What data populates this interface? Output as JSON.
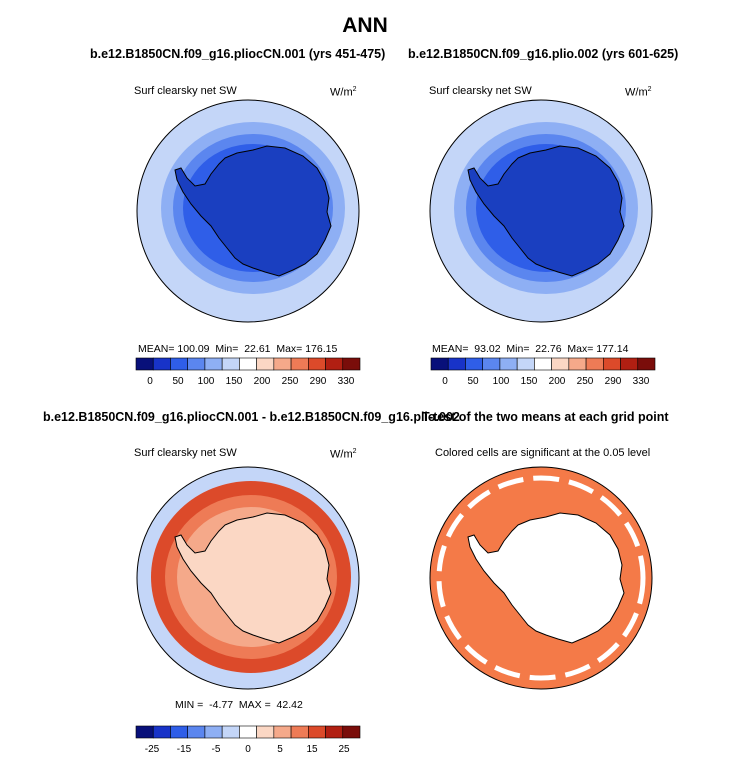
{
  "title": "ANN",
  "panels": {
    "tl": {
      "case_title": "b.e12.B1850CN.f09_g16.pliocCN.001 (yrs 451-475)",
      "variable": "Surf clearsky net SW",
      "units": "W/m",
      "units_sup": "2",
      "stats": "MEAN= 100.09  Min=  22.61  Max= 176.15"
    },
    "tr": {
      "case_title": "b.e12.B1850CN.f09_g16.plio.002 (yrs 601-625)",
      "variable": "Surf clearsky net SW",
      "units": "W/m",
      "units_sup": "2",
      "stats": "MEAN=  93.02  Min=  22.76  Max= 177.14"
    },
    "bl": {
      "case_title": "b.e12.B1850CN.f09_g16.pliocCN.001 - b.e12.B1850CN.f09_g16.plio.002",
      "variable": "Surf clearsky net SW",
      "units": "W/m",
      "units_sup": "2",
      "stats": "MIN =  -4.77  MAX =  42.42"
    },
    "br": {
      "case_title": "T-test of the two means at each grid point",
      "variable": "Colored cells are significant at the 0.05 level"
    }
  },
  "colorbars": {
    "abs": {
      "colors": [
        "#08107a",
        "#1833c8",
        "#2f5ee8",
        "#5b86ef",
        "#8eaff4",
        "#c4d6f8",
        "#ffffff",
        "#fbd7c4",
        "#f5a98a",
        "#ee7b56",
        "#dc4a2a",
        "#b11f12",
        "#7a0d0a"
      ],
      "labels": [
        "0",
        "50",
        "100",
        "150",
        "200",
        "250",
        "290",
        "330"
      ]
    },
    "diff": {
      "colors": [
        "#08107a",
        "#1833c8",
        "#2f5ee8",
        "#5b86ef",
        "#8eaff4",
        "#c4d6f8",
        "#ffffff",
        "#fbd7c4",
        "#f5a98a",
        "#ee7b56",
        "#dc4a2a",
        "#b11f12",
        "#7a0d0a"
      ],
      "labels": [
        "-25",
        "-15",
        "-5",
        "0",
        "5",
        "15",
        "25"
      ]
    }
  },
  "map_colors": {
    "ocean_outer": "#c4d6f8",
    "ring1": "#8eaff4",
    "ring2": "#5b86ef",
    "ring3": "#2f5ee8",
    "land": "#1a3fc0",
    "diff_bg": "#fbd7c4",
    "diff_mid": "#ee7b56",
    "diff_hi": "#dc4a2a",
    "diff_outer": "#c4d6f8",
    "ttest": "#f47a48"
  }
}
